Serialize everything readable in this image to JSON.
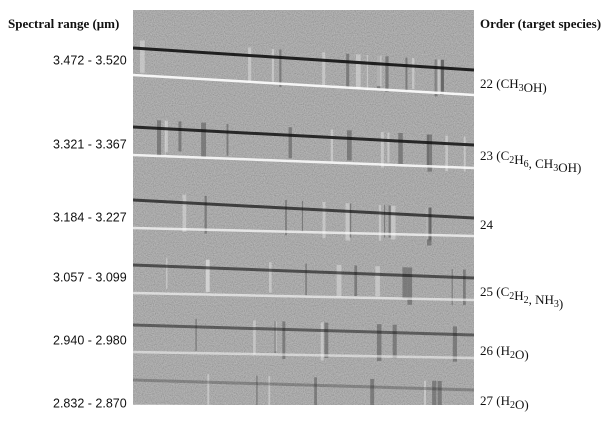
{
  "header": {
    "left": "Spectral range (μm)",
    "right": "Order (target species)"
  },
  "ranges": [
    "3.472 - 3.520",
    "3.321 - 3.367",
    "3.184 - 3.227",
    "3.057 - 3.099",
    "2.940 - 2.980",
    "2.832 - 2.870"
  ],
  "orders": [
    [
      "22 (CH",
      {
        "sub": "3"
      },
      "OH)"
    ],
    [
      "23 (C",
      {
        "sub": "2"
      },
      "H",
      {
        "sub": "6"
      },
      ", CH",
      {
        "sub": "3"
      },
      "OH)"
    ],
    [
      "24"
    ],
    [
      "25 (C",
      {
        "sub": "2"
      },
      "H",
      {
        "sub": "2"
      },
      ", NH",
      {
        "sub": "3"
      },
      ")"
    ],
    [
      "26 (H",
      {
        "sub": "2"
      },
      "O)"
    ],
    [
      "27 (H",
      {
        "sub": "2"
      },
      "O)"
    ]
  ]
}
